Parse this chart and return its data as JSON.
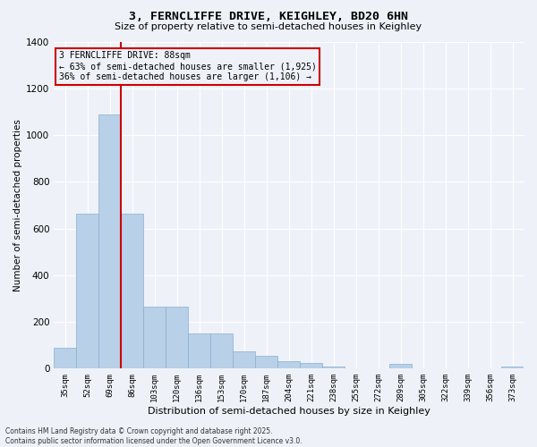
{
  "title_line1": "3, FERNCLIFFE DRIVE, KEIGHLEY, BD20 6HN",
  "title_line2": "Size of property relative to semi-detached houses in Keighley",
  "xlabel": "Distribution of semi-detached houses by size in Keighley",
  "ylabel": "Number of semi-detached properties",
  "categories": [
    "35sqm",
    "52sqm",
    "69sqm",
    "86sqm",
    "103sqm",
    "120sqm",
    "136sqm",
    "153sqm",
    "170sqm",
    "187sqm",
    "204sqm",
    "221sqm",
    "238sqm",
    "255sqm",
    "272sqm",
    "289sqm",
    "305sqm",
    "322sqm",
    "339sqm",
    "356sqm",
    "373sqm"
  ],
  "values": [
    88,
    665,
    1090,
    665,
    265,
    265,
    150,
    150,
    75,
    55,
    30,
    25,
    10,
    0,
    0,
    22,
    0,
    0,
    0,
    0,
    10
  ],
  "bar_color": "#b8d0e8",
  "bar_edge_color": "#8ab0d0",
  "vline_color": "#cc0000",
  "vline_x_idx": 3,
  "annotation_text": "3 FERNCLIFFE DRIVE: 88sqm\n← 63% of semi-detached houses are smaller (1,925)\n36% of semi-detached houses are larger (1,106) →",
  "annotation_box_color": "#cc0000",
  "annotation_bg_color": "#eef2f8",
  "ylim": [
    0,
    1400
  ],
  "yticks": [
    0,
    200,
    400,
    600,
    800,
    1000,
    1200,
    1400
  ],
  "background_color": "#eef2f8",
  "grid_color": "#ffffff",
  "footer_line1": "Contains HM Land Registry data © Crown copyright and database right 2025.",
  "footer_line2": "Contains public sector information licensed under the Open Government Licence v3.0."
}
